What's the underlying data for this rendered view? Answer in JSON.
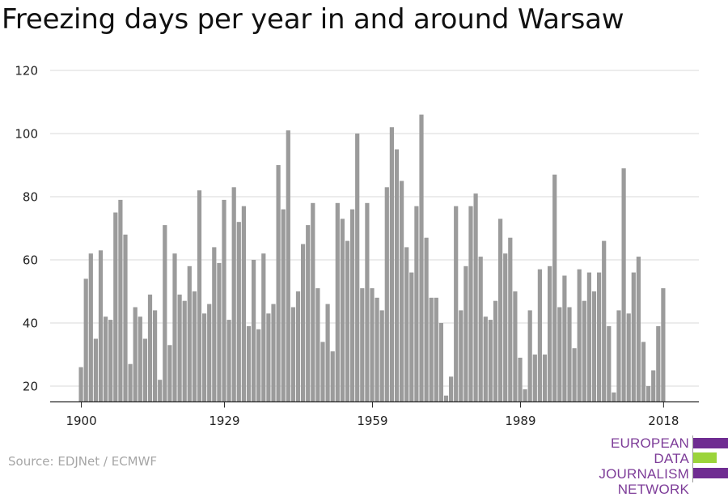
{
  "title": "Freezing days per year in and around Warsaw",
  "source": "Source: EDJNet / ECMWF",
  "logo": {
    "lines": [
      "EUROPEAN",
      "DATA JOURNALISM",
      "NETWORK"
    ],
    "colors": {
      "purple": "#6f2c91",
      "green": "#9bd43a",
      "text": "#7d3c98"
    }
  },
  "colors": {
    "bar": "#9b9b9b",
    "grid": "#d9d9d9",
    "axis": "#222222",
    "text": "#222222"
  },
  "chart_data": {
    "type": "bar",
    "title": "Freezing days per year in and around Warsaw",
    "xlabel": "",
    "ylabel": "",
    "ylim": [
      15,
      120
    ],
    "yticks": [
      20,
      40,
      60,
      80,
      100,
      120
    ],
    "xticks": [
      1900,
      1929,
      1959,
      1989,
      2018
    ],
    "grid": true,
    "x": [
      1900,
      1901,
      1902,
      1903,
      1904,
      1905,
      1906,
      1907,
      1908,
      1909,
      1910,
      1911,
      1912,
      1913,
      1914,
      1915,
      1916,
      1917,
      1918,
      1919,
      1920,
      1921,
      1922,
      1923,
      1924,
      1925,
      1926,
      1927,
      1928,
      1929,
      1930,
      1931,
      1932,
      1933,
      1934,
      1935,
      1936,
      1937,
      1938,
      1939,
      1940,
      1941,
      1942,
      1943,
      1944,
      1945,
      1946,
      1947,
      1948,
      1949,
      1950,
      1951,
      1952,
      1953,
      1954,
      1955,
      1956,
      1957,
      1958,
      1959,
      1960,
      1961,
      1962,
      1963,
      1964,
      1965,
      1966,
      1967,
      1968,
      1969,
      1970,
      1971,
      1972,
      1973,
      1974,
      1975,
      1976,
      1977,
      1978,
      1979,
      1980,
      1981,
      1982,
      1983,
      1984,
      1985,
      1986,
      1987,
      1988,
      1989,
      1990,
      1991,
      1992,
      1993,
      1994,
      1995,
      1996,
      1997,
      1998,
      1999,
      2000,
      2001,
      2002,
      2003,
      2004,
      2005,
      2006,
      2007,
      2008,
      2009,
      2010,
      2011,
      2012,
      2013,
      2014,
      2015,
      2016,
      2017,
      2018
    ],
    "values": [
      26,
      54,
      62,
      35,
      63,
      42,
      41,
      75,
      79,
      68,
      27,
      45,
      42,
      35,
      49,
      44,
      22,
      71,
      33,
      62,
      49,
      47,
      58,
      50,
      82,
      43,
      46,
      64,
      59,
      79,
      41,
      83,
      72,
      77,
      39,
      60,
      38,
      62,
      43,
      46,
      90,
      76,
      101,
      45,
      50,
      65,
      71,
      78,
      51,
      34,
      46,
      31,
      78,
      73,
      66,
      76,
      100,
      51,
      78,
      51,
      48,
      44,
      83,
      102,
      95,
      85,
      64,
      56,
      77,
      106,
      67,
      48,
      48,
      40,
      17,
      23,
      77,
      44,
      58,
      77,
      81,
      61,
      42,
      41,
      47,
      73,
      62,
      67,
      50,
      29,
      19,
      44,
      30,
      57,
      30,
      58,
      87,
      45,
      55,
      45,
      32,
      57,
      47,
      56,
      50,
      56,
      66,
      39,
      18,
      44,
      89,
      43,
      56,
      61,
      34,
      20,
      25,
      39,
      51
    ]
  }
}
